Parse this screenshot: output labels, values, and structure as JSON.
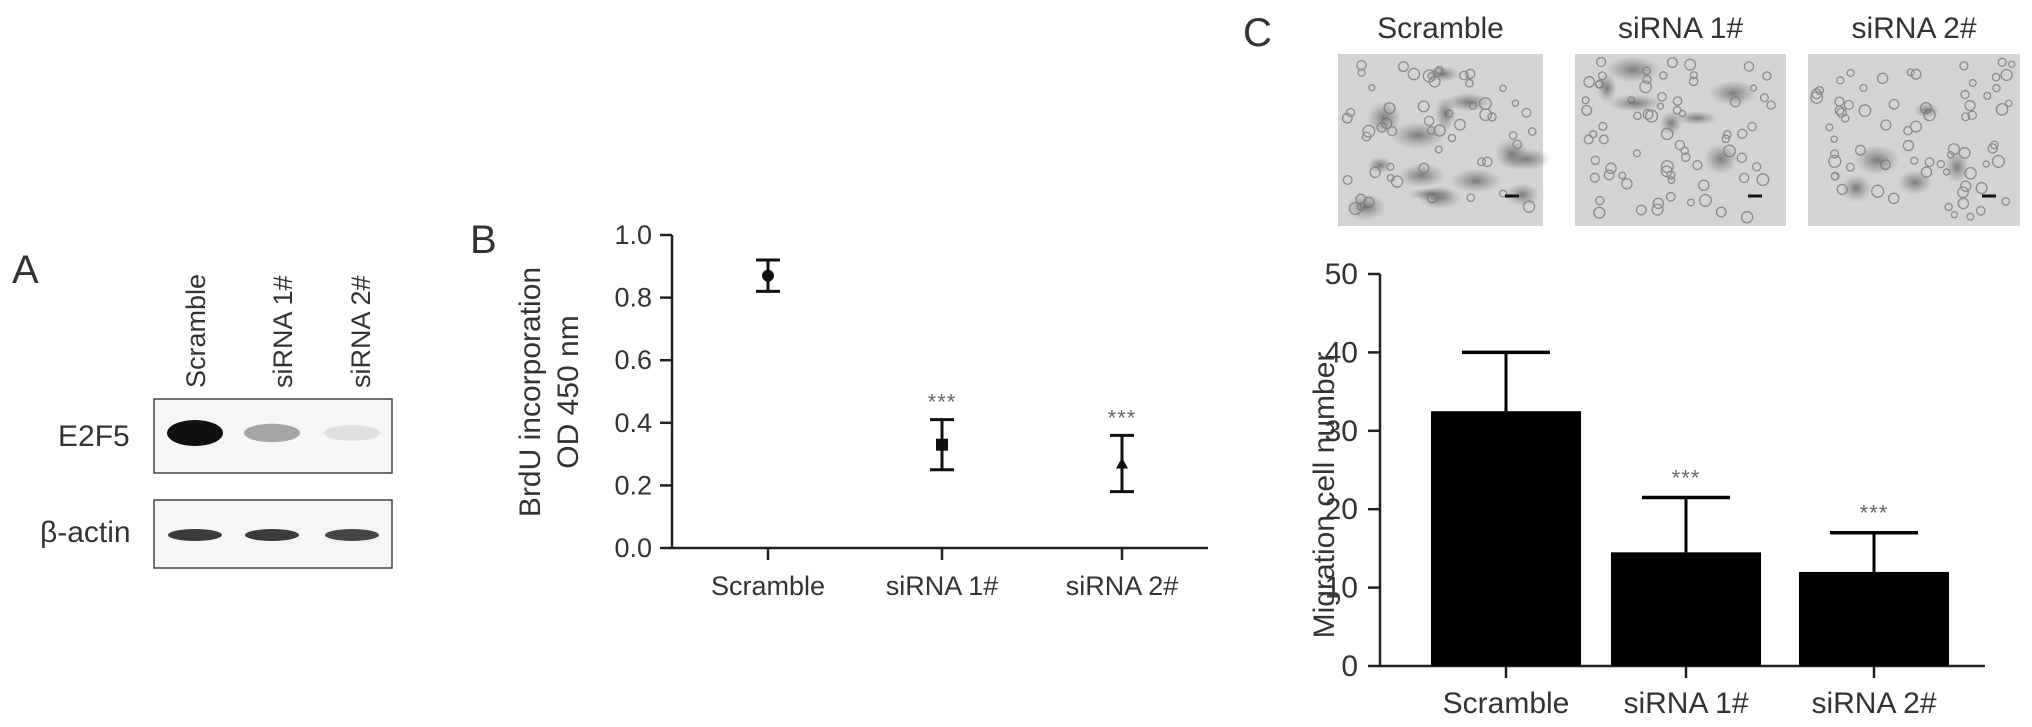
{
  "panels": {
    "a": {
      "letter": "A",
      "lanes": [
        "Scramble",
        "siRNA 1#",
        "siRNA 2#"
      ],
      "rows": [
        {
          "label": "E2F5",
          "intensity": [
            1.0,
            0.35,
            0.1
          ]
        },
        {
          "label": "β-actin",
          "intensity": [
            0.85,
            0.85,
            0.8
          ]
        }
      ]
    },
    "b": {
      "letter": "B",
      "ylabel_line1": "BrdU incorporation",
      "ylabel_line2": "OD 450 nm",
      "significance": "***"
    },
    "c": {
      "letter": "C",
      "image_labels": [
        "Scramble",
        "siRNA 1#",
        "siRNA 2#"
      ],
      "ylabel": "Migration cell number",
      "significance": "***"
    }
  },
  "chart_data": [
    {
      "id": "B",
      "type": "scatter",
      "categories": [
        "Scramble",
        "siRNA 1#",
        "siRNA 2#"
      ],
      "values": [
        0.87,
        0.33,
        0.27
      ],
      "error_low": [
        0.82,
        0.25,
        0.18
      ],
      "error_high": [
        0.92,
        0.41,
        0.36
      ],
      "markers": [
        "circle",
        "square",
        "triangle"
      ],
      "annotations": [
        "",
        "***",
        "***"
      ],
      "ylabel": "BrdU incorporation OD 450 nm",
      "ylim": [
        0.0,
        1.0
      ],
      "yticks": [
        "0.0",
        "0.2",
        "0.4",
        "0.6",
        "0.8",
        "1.0"
      ]
    },
    {
      "id": "C",
      "type": "bar",
      "categories": [
        "Scramble",
        "siRNA 1#",
        "siRNA 2#"
      ],
      "values": [
        32.5,
        14.5,
        12
      ],
      "error_high": [
        40,
        21.5,
        17
      ],
      "annotations": [
        "",
        "***",
        "***"
      ],
      "ylabel": "Migration cell number",
      "ylim": [
        0,
        50
      ],
      "yticks": [
        "0",
        "10",
        "20",
        "30",
        "40",
        "50"
      ]
    }
  ]
}
